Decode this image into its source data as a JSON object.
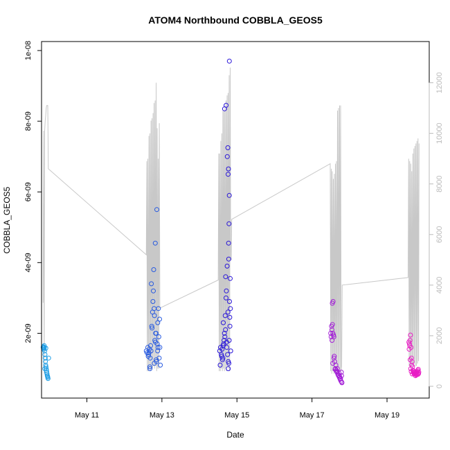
{
  "chart_data": {
    "type": "scatter",
    "title": "ATOM4 Northbound COBBLA_GEOS5",
    "xlabel": "Date",
    "ylabel": "COBBLA_GEOS5",
    "y2label": "",
    "x_ticks": [
      "May 11",
      "May 13",
      "May 15",
      "May 17",
      "May 19"
    ],
    "y_ticks": [
      "2e-09",
      "4e-09",
      "6e-09",
      "8e-09",
      "1e-08"
    ],
    "y2_ticks": [
      "0",
      "2000",
      "4000",
      "6000",
      "8000",
      "10000",
      "12000"
    ],
    "xlim": [
      "2016-05-09T19:00",
      "2016-05-20T03:00"
    ],
    "ylim": [
      5e-10,
      1e-08
    ],
    "y2lim": [
      0,
      13000
    ],
    "grid": false,
    "legend": "none",
    "colors": {
      "profile_line": "#c8c8c8",
      "axis": "#000000",
      "axis_right": "#bbbbbb",
      "flight_1": "#1e9ee6",
      "flight_2": "#2659e0",
      "flight_3": "#2814d8",
      "flight_4": "#a21ed6",
      "flight_5": "#e81cc4"
    },
    "series": [
      {
        "x": [
          "2016-05-09T20:00",
          "2016-05-09T20:10",
          "2016-05-09T20:20",
          "2016-05-09T20:30",
          "2016-05-09T20:40",
          "2016-05-09T20:50",
          "2016-05-09T21:00",
          "2016-05-09T21:10",
          "2016-05-09T21:20",
          "2016-05-09T21:30",
          "2016-05-09T21:40",
          "2016-05-09T21:50",
          "2016-05-09T22:00",
          "2016-05-09T22:10",
          "2016-05-09T22:20",
          "2016-05-09T22:30",
          "2016-05-09T22:40",
          "2016-05-09T22:50",
          "2016-05-09T23:00",
          "2016-05-09T23:10",
          "2016-05-09T23:30",
          "2016-05-09T21:05",
          "2016-05-09T21:45"
        ],
        "y": [
          1.6e-09,
          1.62e-09,
          1.58e-09,
          1.55e-09,
          1.65e-09,
          1.6e-09,
          1.5e-09,
          1.4e-09,
          1.3e-09,
          1.2e-09,
          1.1e-09,
          1.05e-09,
          1e-09,
          9.5e-10,
          9e-10,
          8.5e-10,
          8e-10,
          7.8e-10,
          7.5e-10,
          7.2e-10,
          1.3e-09,
          1e-09,
          1.58e-09
        ]
      },
      {
        "x": [
          "2016-05-12T14:00",
          "2016-05-12T14:30",
          "2016-05-12T15:00",
          "2016-05-12T15:30",
          "2016-05-12T16:00",
          "2016-05-12T16:30",
          "2016-05-12T17:00",
          "2016-05-12T17:30",
          "2016-05-12T18:00",
          "2016-05-12T18:30",
          "2016-05-12T19:00",
          "2016-05-12T19:30",
          "2016-05-12T20:00",
          "2016-05-12T20:30",
          "2016-05-12T21:00",
          "2016-05-12T21:30",
          "2016-05-12T22:00",
          "2016-05-12T22:30",
          "2016-05-12T23:00",
          "2016-05-12T15:15",
          "2016-05-12T16:15",
          "2016-05-12T17:15",
          "2016-05-12T18:15",
          "2016-05-12T19:15",
          "2016-05-12T20:15",
          "2016-05-12T21:15",
          "2016-05-12T22:15",
          "2016-05-12T16:45",
          "2016-05-12T18:45",
          "2016-05-12T20:45",
          "2016-05-12T19:45",
          "2016-05-12T21:45",
          "2016-05-12T19:05",
          "2016-05-12T19:50",
          "2016-05-12T17:40",
          "2016-05-12T20:20",
          "2016-05-12T16:20",
          "2016-05-12T21:20",
          "2016-05-12T22:40",
          "2016-05-12T15:40"
        ],
        "y": [
          1.5e-09,
          1.45e-09,
          1.6e-09,
          1.4e-09,
          1.55e-09,
          1.3e-09,
          1.5e-09,
          2.2e-09,
          2.6e-09,
          3.2e-09,
          2.7e-09,
          1.8e-09,
          2e-09,
          1.2e-09,
          1.7e-09,
          1.6e-09,
          1.9e-09,
          2.4e-09,
          1.1e-09,
          1.35e-09,
          1.05e-09,
          3.4e-09,
          2.9e-09,
          2.5e-09,
          2e-09,
          1.5e-09,
          1.3e-09,
          1.65e-09,
          3.8e-09,
          5.5e-09,
          4.55e-09,
          2.7e-09,
          1.15e-09,
          1.75e-09,
          2.15e-09,
          1.25e-09,
          1e-09,
          2.3e-09,
          1.6e-09,
          1.45e-09
        ]
      },
      {
        "x": [
          "2016-05-14T13:00",
          "2016-05-14T13:30",
          "2016-05-14T14:00",
          "2016-05-14T14:30",
          "2016-05-14T15:00",
          "2016-05-14T15:30",
          "2016-05-14T16:00",
          "2016-05-14T16:30",
          "2016-05-14T17:00",
          "2016-05-14T17:30",
          "2016-05-14T18:00",
          "2016-05-14T18:30",
          "2016-05-14T19:00",
          "2016-05-14T19:30",
          "2016-05-14T20:00",
          "2016-05-14T13:15",
          "2016-05-14T14:15",
          "2016-05-14T15:15",
          "2016-05-14T16:15",
          "2016-05-14T17:15",
          "2016-05-14T18:15",
          "2016-05-14T19:15",
          "2016-05-14T14:45",
          "2016-05-14T15:45",
          "2016-05-14T16:45",
          "2016-05-14T17:45",
          "2016-05-14T18:45",
          "2016-05-14T18:40",
          "2016-05-14T18:55",
          "2016-05-14T19:05",
          "2016-05-14T18:20",
          "2016-05-14T18:35",
          "2016-05-14T17:50",
          "2016-05-14T18:10",
          "2016-05-14T16:05",
          "2016-05-14T17:05",
          "2016-05-14T19:40",
          "2016-05-14T19:50",
          "2016-05-14T15:05",
          "2016-05-14T16:40",
          "2016-05-14T18:25",
          "2016-05-14T18:50",
          "2016-05-14T19:25",
          "2016-05-14T19:10",
          "2016-05-14T17:25"
        ],
        "y": [
          1.5e-09,
          1.6e-09,
          1.4e-09,
          1.55e-09,
          1.3e-09,
          1.7e-09,
          2e-09,
          2.5e-09,
          3e-09,
          1.6e-09,
          1.4e-09,
          1.2e-09,
          1.8e-09,
          2.2e-09,
          1.5e-09,
          1.1e-09,
          1.35e-09,
          2.3e-09,
          1.9e-09,
          3.2e-09,
          2.6e-09,
          2.9e-09,
          1.25e-09,
          1.8e-09,
          3.6e-09,
          3.9e-09,
          4.1e-09,
          4.55e-09,
          5.1e-09,
          5.9e-09,
          6.5e-09,
          6.65e-09,
          7e-09,
          7.25e-09,
          8.35e-09,
          8.45e-09,
          3.55e-09,
          2.7e-09,
          1.65e-09,
          2.1e-09,
          1e-09,
          1.15e-09,
          2.45e-09,
          9.7e-09,
          1.75e-09
        ]
      },
      {
        "x": [
          "2016-05-17T12:00",
          "2016-05-17T12:30",
          "2016-05-17T13:00",
          "2016-05-17T13:30",
          "2016-05-17T14:00",
          "2016-05-17T14:30",
          "2016-05-17T15:00",
          "2016-05-17T15:30",
          "2016-05-17T16:00",
          "2016-05-17T16:30",
          "2016-05-17T17:00",
          "2016-05-17T17:30",
          "2016-05-17T18:00",
          "2016-05-17T18:30",
          "2016-05-17T19:00",
          "2016-05-17T12:15",
          "2016-05-17T12:45",
          "2016-05-17T13:15",
          "2016-05-17T13:45",
          "2016-05-17T14:15",
          "2016-05-17T15:15",
          "2016-05-17T16:15",
          "2016-05-17T17:15",
          "2016-05-17T18:15",
          "2016-05-17T14:45",
          "2016-05-17T15:45",
          "2016-05-17T16:45",
          "2016-05-17T17:45",
          "2016-05-17T18:45",
          "2016-05-17T13:05",
          "2016-05-17T13:20",
          "2016-05-17T14:05",
          "2016-05-17T19:10",
          "2016-05-17T18:55",
          "2016-05-17T12:50"
        ],
        "y": [
          2e-09,
          2.2e-09,
          2.85e-09,
          2.9e-09,
          1.9e-09,
          1.2e-09,
          1e-09,
          9.5e-10,
          9e-10,
          8.5e-10,
          8e-10,
          7.5e-10,
          7e-10,
          6.5e-10,
          6.2e-10,
          1.9e-09,
          2.1e-09,
          1.15e-09,
          1.95e-09,
          1.35e-09,
          1.1e-09,
          1e-09,
          8.8e-10,
          7.2e-10,
          9.8e-10,
          9.2e-10,
          8.2e-10,
          7.8e-10,
          9e-10,
          2.25e-09,
          2e-09,
          1.3e-09,
          6e-10,
          8e-10,
          1.8e-09
        ]
      },
      {
        "x": [
          "2016-05-19T14:00",
          "2016-05-19T14:20",
          "2016-05-19T14:40",
          "2016-05-19T15:00",
          "2016-05-19T15:20",
          "2016-05-19T15:40",
          "2016-05-19T16:00",
          "2016-05-19T16:20",
          "2016-05-19T16:40",
          "2016-05-19T17:00",
          "2016-05-19T17:20",
          "2016-05-19T17:40",
          "2016-05-19T18:00",
          "2016-05-19T18:20",
          "2016-05-19T18:40",
          "2016-05-19T19:00",
          "2016-05-19T19:20",
          "2016-05-19T19:40",
          "2016-05-19T20:00",
          "2016-05-19T14:10",
          "2016-05-19T14:30",
          "2016-05-19T14:50",
          "2016-05-19T15:10",
          "2016-05-19T15:30",
          "2016-05-19T16:10",
          "2016-05-19T17:10",
          "2016-05-19T18:10",
          "2016-05-19T19:10",
          "2016-05-19T20:10",
          "2016-05-19T16:50",
          "2016-05-19T17:50",
          "2016-05-19T18:50",
          "2016-05-19T19:50",
          "2016-05-19T20:20",
          "2016-05-19T15:50"
        ],
        "y": [
          1.75e-09,
          1.7e-09,
          1.8e-09,
          1.95e-09,
          1.6e-09,
          1.3e-09,
          1.2e-09,
          1.05e-09,
          9.5e-10,
          9e-10,
          8.5e-10,
          8.8e-10,
          9e-10,
          8.5e-10,
          8.2e-10,
          8.8e-10,
          9.2e-10,
          9.5e-10,
          9.8e-10,
          1.55e-09,
          1.65e-09,
          1.25e-09,
          1e-09,
          9.2e-10,
          8.5e-10,
          8.8e-10,
          8e-10,
          8.3e-10,
          8.6e-10,
          9.3e-10,
          8.9e-10,
          9.1e-10,
          8.4e-10,
          9e-10,
          1.1e-09
        ]
      }
    ],
    "profile": {
      "x": [
        "2016-05-09T20:00",
        "2016-05-09T20:20",
        "2016-05-09T20:40",
        "2016-05-09T21:00",
        "2016-05-09T21:20",
        "2016-05-09T21:40",
        "2016-05-09T22:00",
        "2016-05-09T22:20",
        "2016-05-09T22:40",
        "2016-05-09T23:00",
        "2016-05-09T23:20",
        "2016-05-12T14:00",
        "2016-05-12T14:20",
        "2016-05-12T14:40",
        "2016-05-12T15:00",
        "2016-05-12T15:20",
        "2016-05-12T15:40",
        "2016-05-12T16:00",
        "2016-05-12T16:20",
        "2016-05-12T16:40",
        "2016-05-12T17:00",
        "2016-05-12T17:20",
        "2016-05-12T17:40",
        "2016-05-12T18:00",
        "2016-05-12T18:20",
        "2016-05-12T18:40",
        "2016-05-12T19:00",
        "2016-05-12T19:20",
        "2016-05-12T19:40",
        "2016-05-12T20:00",
        "2016-05-12T20:20",
        "2016-05-12T20:40",
        "2016-05-12T21:00",
        "2016-05-12T21:20",
        "2016-05-12T21:40",
        "2016-05-12T22:00",
        "2016-05-12T22:20",
        "2016-05-12T22:40",
        "2016-05-12T23:00",
        "2016-05-14T12:00",
        "2016-05-14T12:20",
        "2016-05-14T12:40",
        "2016-05-14T13:00",
        "2016-05-14T13:20",
        "2016-05-14T13:40",
        "2016-05-14T14:00",
        "2016-05-14T14:20",
        "2016-05-14T14:40",
        "2016-05-14T15:00",
        "2016-05-14T15:20",
        "2016-05-14T15:40",
        "2016-05-14T16:00",
        "2016-05-14T16:20",
        "2016-05-14T16:40",
        "2016-05-14T17:00",
        "2016-05-14T17:20",
        "2016-05-14T17:40",
        "2016-05-14T18:00",
        "2016-05-14T18:20",
        "2016-05-14T18:40",
        "2016-05-14T19:00",
        "2016-05-14T19:20",
        "2016-05-14T19:40",
        "2016-05-14T20:00",
        "2016-05-14T20:20",
        "2016-05-14T20:40",
        "2016-05-17T11:40",
        "2016-05-17T12:00",
        "2016-05-17T12:20",
        "2016-05-17T12:40",
        "2016-05-17T13:00",
        "2016-05-17T13:20",
        "2016-05-17T13:40",
        "2016-05-17T14:00",
        "2016-05-17T14:20",
        "2016-05-17T14:40",
        "2016-05-17T15:00",
        "2016-05-17T15:20",
        "2016-05-17T15:40",
        "2016-05-17T16:00",
        "2016-05-17T16:20",
        "2016-05-17T16:40",
        "2016-05-17T17:00",
        "2016-05-17T17:20",
        "2016-05-17T17:40",
        "2016-05-17T18:00",
        "2016-05-17T18:20",
        "2016-05-17T18:40",
        "2016-05-17T19:00",
        "2016-05-17T19:20",
        "2016-05-19T13:30",
        "2016-05-19T13:50",
        "2016-05-19T14:10",
        "2016-05-19T14:30",
        "2016-05-19T14:50",
        "2016-05-19T15:10",
        "2016-05-19T15:30",
        "2016-05-19T15:50",
        "2016-05-19T16:10",
        "2016-05-19T16:30",
        "2016-05-19T16:50",
        "2016-05-19T17:10",
        "2016-05-19T17:30",
        "2016-05-19T17:50",
        "2016-05-19T18:10",
        "2016-05-19T18:30",
        "2016-05-19T18:50",
        "2016-05-19T19:10",
        "2016-05-19T19:30",
        "2016-05-19T19:50",
        "2016-05-19T20:10",
        "2016-05-19T20:30"
      ],
      "y": [
        3300,
        10100,
        500,
        10100,
        10500,
        10700,
        11000,
        11100,
        11100,
        11100,
        8600,
        5200,
        8900,
        600,
        9000,
        600,
        9900,
        700,
        10000,
        600,
        10500,
        700,
        10600,
        700,
        10800,
        800,
        11200,
        700,
        11300,
        800,
        12000,
        600,
        10200,
        700,
        9000,
        700,
        10400,
        3100,
        3100,
        4200,
        9200,
        600,
        9200,
        600,
        9700,
        700,
        10000,
        600,
        10900,
        700,
        10900,
        600,
        11000,
        700,
        11300,
        600,
        11500,
        800,
        11600,
        700,
        12300,
        600,
        12600,
        5000,
        5000,
        6600,
        8800,
        600,
        8600,
        500,
        8500,
        600,
        8200,
        500,
        8400,
        600,
        8800,
        500,
        8900,
        600,
        10900,
        500,
        11000,
        500,
        11100,
        600,
        11100,
        600,
        800,
        4000,
        4300,
        9000,
        800,
        8900,
        800,
        8800,
        800,
        8500,
        800,
        9200,
        800,
        9400,
        900,
        9500,
        800,
        9600,
        800,
        9700,
        900,
        9800,
        1000,
        9600
      ]
    }
  }
}
